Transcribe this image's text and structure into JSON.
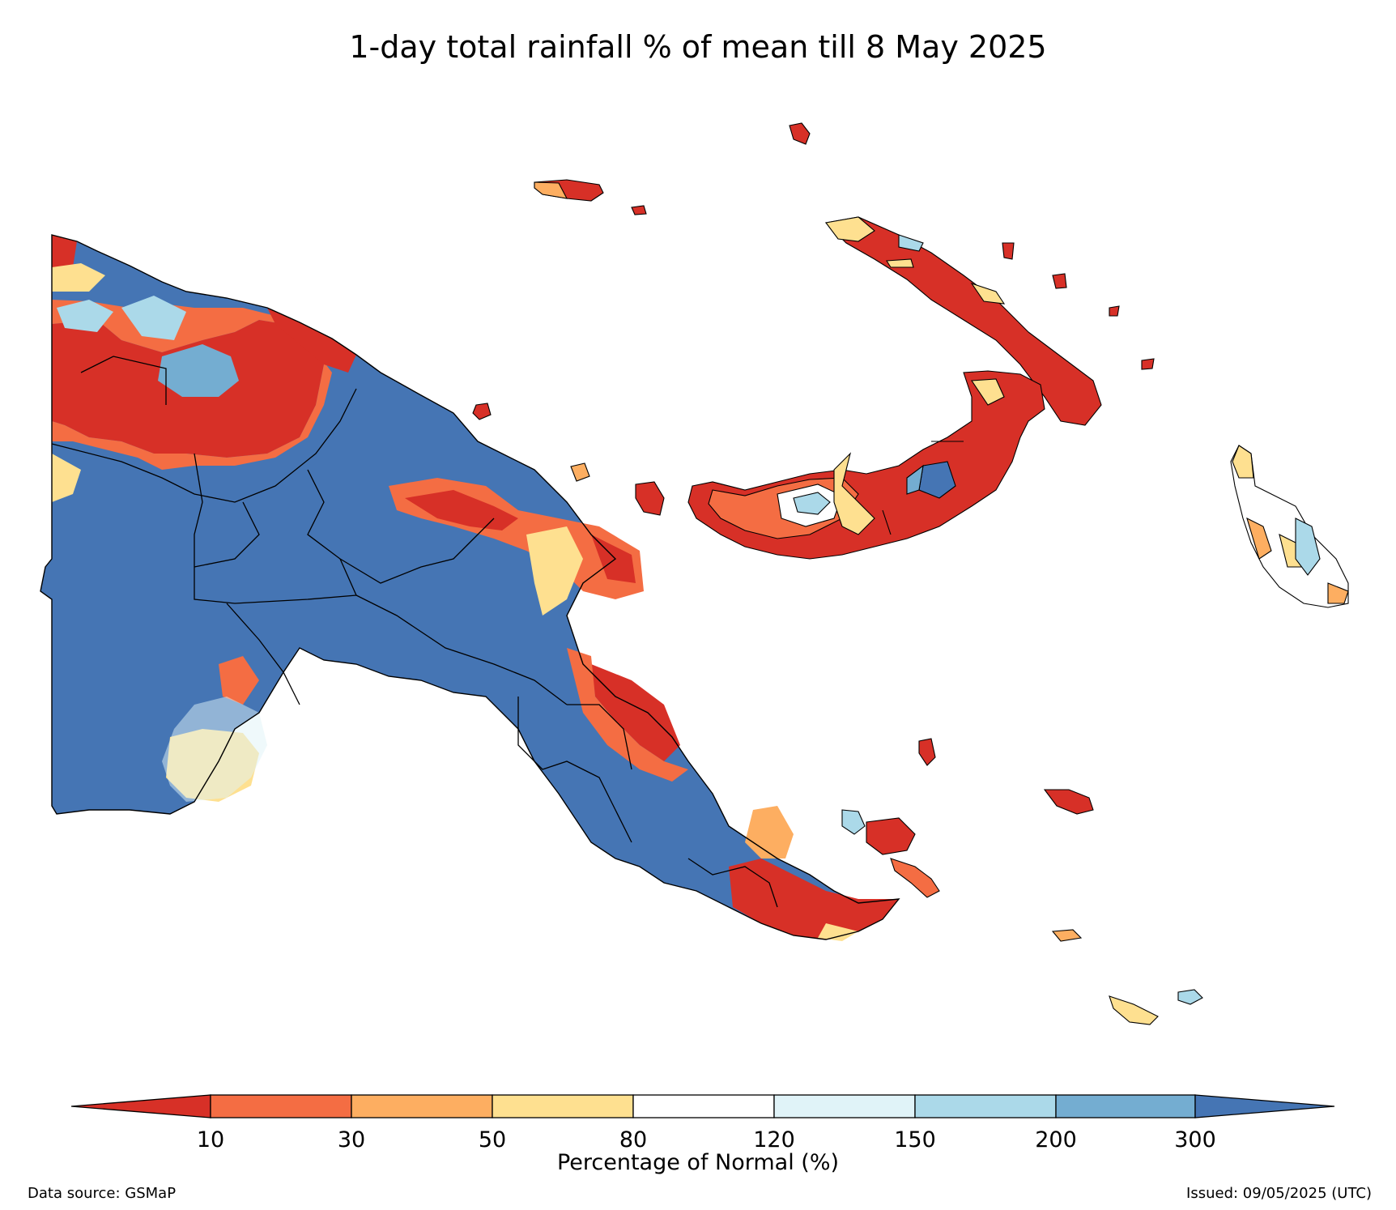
{
  "title": "1-day total rainfall % of mean till 8 May 2025",
  "colors": {
    "below_10": "#d73027",
    "10_30": "#f46d43",
    "30_50": "#fdae61",
    "50_80": "#fee090",
    "80_120": "#ffffff",
    "120_150": "#e0f3f8",
    "150_200": "#abd9e9",
    "200_300": "#74add1",
    "above_300": "#4575b4"
  },
  "legend": {
    "ticks": [
      "10",
      "30",
      "50",
      "80",
      "120",
      "150",
      "200",
      "300"
    ],
    "label": "Percentage of Normal (%)"
  },
  "footer": {
    "source": "Data source: GSMaP",
    "issued": "Issued: 09/05/2025 (UTC)"
  }
}
